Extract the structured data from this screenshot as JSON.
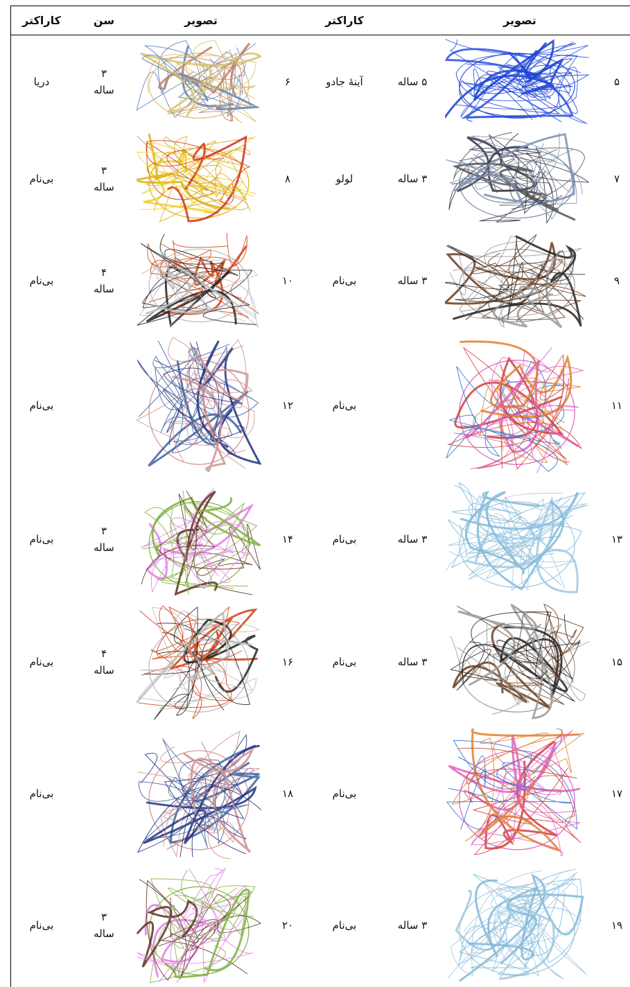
{
  "table": {
    "headers": {
      "right_image": "تصویر",
      "right_character": "کاراکتر",
      "left_image": "تصویر",
      "left_age": "سن",
      "left_character": "کاراکتر"
    },
    "rows": [
      {
        "right": {
          "number": "۵",
          "age": "۵ ساله",
          "character": "آینهٔ جادو"
        },
        "left": {
          "number": "۶",
          "age": "۳ ساله",
          "character": "دریا"
        }
      },
      {
        "right": {
          "number": "۷",
          "age": "۳ ساله",
          "character": "لولو"
        },
        "left": {
          "number": "۸",
          "age": "۳ ساله",
          "character": "بی‌نام"
        }
      },
      {
        "right": {
          "number": "۹",
          "age": "۳ ساله",
          "character": "بی‌نام"
        },
        "left": {
          "number": "۱۰",
          "age": "۴ ساله",
          "character": "بی‌نام"
        }
      },
      {
        "right": {
          "number": "۱۱",
          "character": "بی‌نام"
        },
        "left": {
          "number": "۱۲",
          "character": "بی‌نام"
        }
      },
      {
        "right": {
          "number": "۱۳",
          "age": "۳ ساله",
          "character": "بی‌نام"
        },
        "left": {
          "number": "۱۴",
          "age": "۳ ساله",
          "character": "بی‌نام"
        }
      },
      {
        "right": {
          "number": "۱۵",
          "age": "۳ ساله",
          "character": "بی‌نام"
        },
        "left": {
          "number": "۱۶",
          "age": "۴ ساله",
          "character": "بی‌نام"
        }
      },
      {
        "right": {
          "number": "۱۷",
          "character": "بی‌نام"
        },
        "left": {
          "number": "۱۸",
          "character": "بی‌نام"
        }
      },
      {
        "right": {
          "number": "۱۹",
          "age": "۳ ساله",
          "character": "بی‌نام"
        },
        "left": {
          "number": "۲۰",
          "age": "۳ ساله",
          "character": "بی‌نام"
        }
      }
    ]
  }
}
